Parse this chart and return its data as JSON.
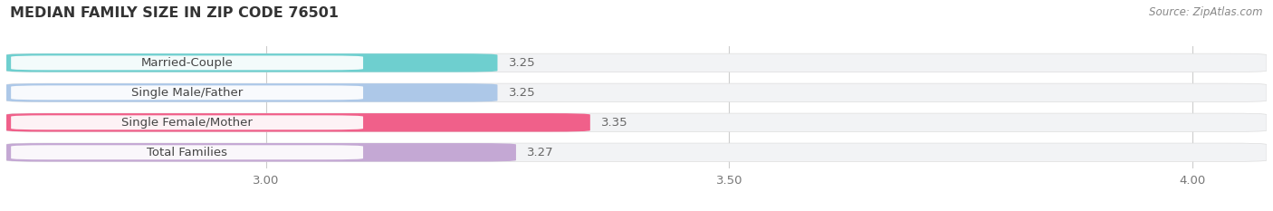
{
  "title": "MEDIAN FAMILY SIZE IN ZIP CODE 76501",
  "source": "Source: ZipAtlas.com",
  "categories": [
    "Married-Couple",
    "Single Male/Father",
    "Single Female/Mother",
    "Total Families"
  ],
  "values": [
    3.25,
    3.25,
    3.35,
    3.27
  ],
  "bar_colors": [
    "#6ecfcf",
    "#adc8e8",
    "#f0608a",
    "#c4a8d4"
  ],
  "xlim_left": 2.72,
  "xlim_right": 4.08,
  "xticks": [
    3.0,
    3.5,
    4.0
  ],
  "xtick_labels": [
    "3.00",
    "3.50",
    "4.00"
  ],
  "value_label_color": "#666666",
  "label_color": "#444444",
  "title_color": "#333333",
  "source_color": "#888888",
  "fig_width": 14.06,
  "fig_height": 2.33,
  "bar_height": 0.62,
  "bg_color": "#f2f3f5",
  "label_bg_color": "#ffffff",
  "grid_color": "#cccccc"
}
